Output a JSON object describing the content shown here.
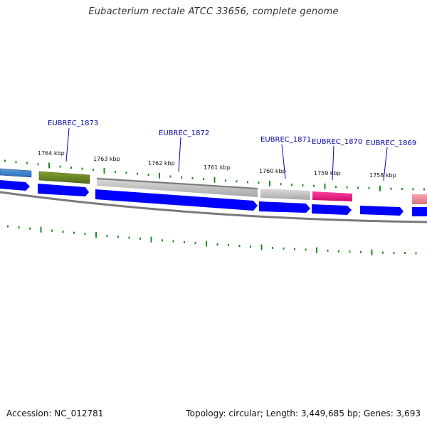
{
  "title": "Eubacterium rectale ATCC 33656, complete genome",
  "accession_text": "Accession: NC_012781",
  "stats_text": "Topology: circular; Length: 3,449,685 bp; Genes: 3,693",
  "colors": {
    "tick": "#1f8f1f",
    "backbone": "#888888",
    "cds_forward": "#0000ff",
    "label": "#0000aa",
    "kbp": "#111111"
  },
  "kbp_labels": [
    "1764 kbp",
    "1763 kbp",
    "1762 kbp",
    "1761 kbp",
    "1760 kbp",
    "1759 kbp",
    "1758 kbp"
  ],
  "gene_labels": [
    "EUBREC_1873",
    "EUBREC_1872",
    "EUBREC_1871",
    "EUBREC_1870",
    "EUBREC_1869"
  ],
  "top_features": [
    {
      "name": "feature-blue-gradient",
      "color": "#3a7fd6"
    },
    {
      "name": "feature-olive",
      "color": "#6b8e23"
    },
    {
      "name": "feature-gray-1872",
      "color": "#c4c4c4"
    },
    {
      "name": "feature-gray-1871",
      "color": "#bdbdbd"
    },
    {
      "name": "feature-magenta-1870",
      "color": "#e8157f"
    },
    {
      "name": "feature-pink-right",
      "color": "#f08a94"
    }
  ]
}
